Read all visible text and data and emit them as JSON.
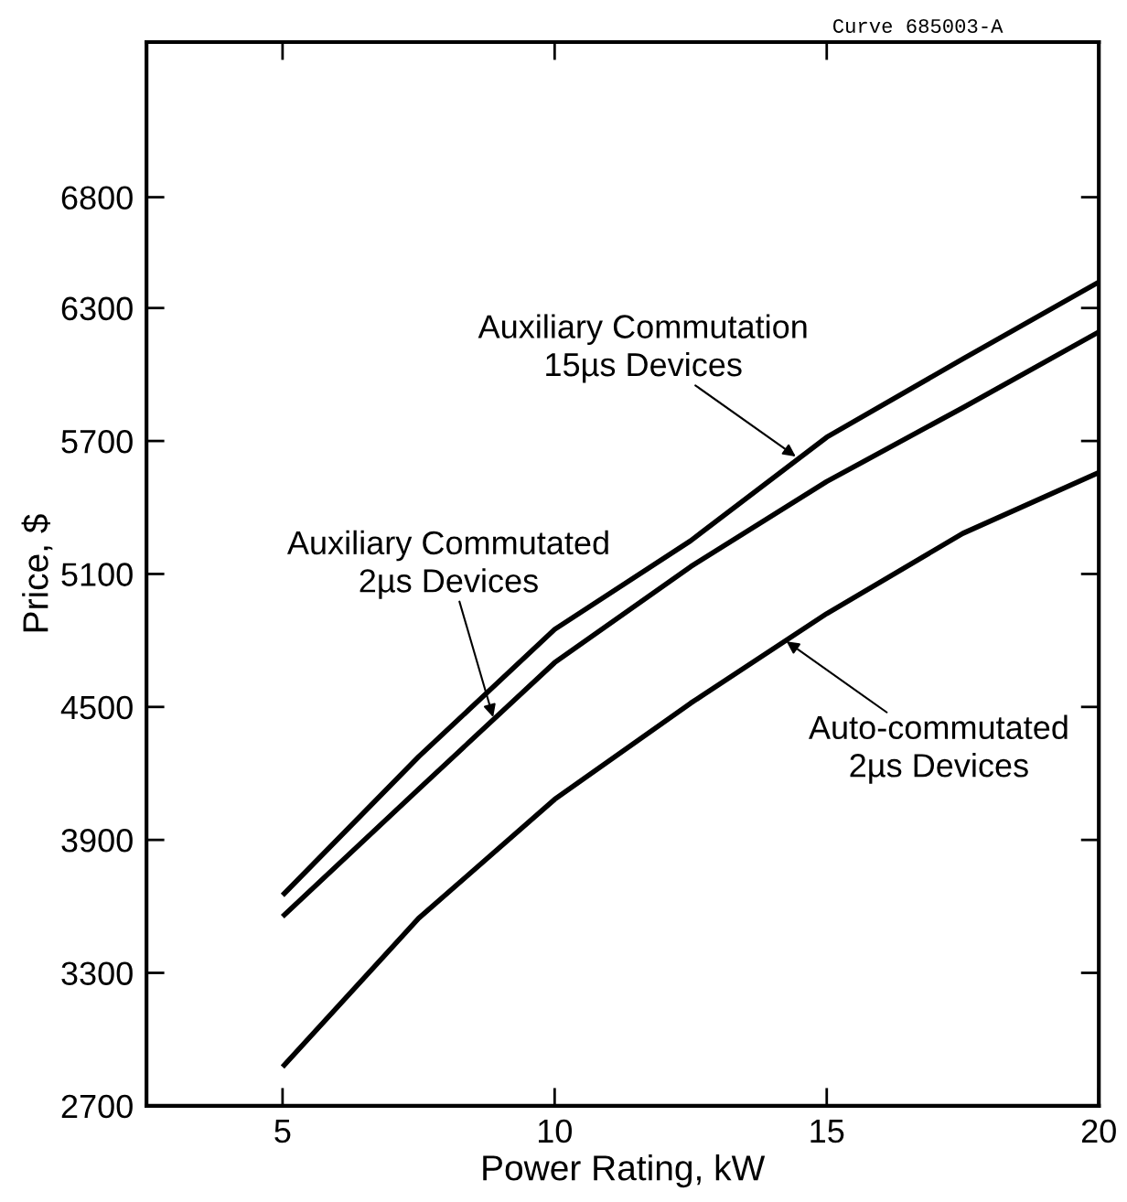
{
  "chart_data": {
    "type": "line",
    "xlabel": "Power Rating, kW",
    "ylabel": "Price, $",
    "x": [
      5,
      7.5,
      10,
      12.5,
      15,
      17.5,
      20
    ],
    "series": [
      {
        "color": "#000000",
        "values": [
          3650,
          4275,
          4850,
          5250,
          5717,
          6070,
          6417
        ]
      },
      {
        "color": "#000000",
        "values": [
          3554,
          4129,
          4700,
          5133,
          5517,
          5850,
          6192
        ]
      },
      {
        "color": "#000000",
        "values": [
          2875,
          3546,
          4083,
          4517,
          4921,
          5283,
          5558
        ]
      }
    ],
    "xlim": [
      2.5,
      20
    ],
    "ylim": [
      2700,
      7500
    ],
    "xticks": [
      5,
      10,
      15,
      20
    ],
    "yticks": [
      2700,
      3300,
      3900,
      4500,
      5100,
      5700,
      6300,
      6800
    ],
    "grid": false,
    "legend": false,
    "marker": "none",
    "line_style": "solid",
    "annotations": [
      {
        "text": "Auxiliary Commutation\n15µs Devices",
        "x": 14.43,
        "y": 5630
      },
      {
        "text": "Auxiliary Commutated\n2µs Devices",
        "x": 8.87,
        "y": 4454
      },
      {
        "text": "Auto-commutated\n2µs Devices",
        "x": 14.26,
        "y": 4796
      },
      "Curve 685003-A"
    ]
  }
}
